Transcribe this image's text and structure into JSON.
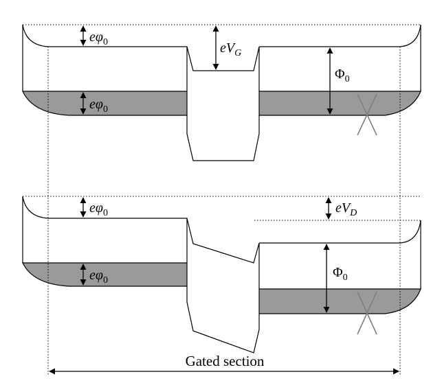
{
  "colors": {
    "line": "#000000",
    "fill": "#9a9a9a",
    "guide": "#000000",
    "cross": "#808080"
  },
  "top_panel": {
    "label_ephi_upper": "eφ",
    "label_ephi_upper_sub": "0",
    "label_ephi_lower": "eφ",
    "label_ephi_lower_sub": "0",
    "label_gate": "eV",
    "label_gate_sub": "G",
    "label_work": "Φ",
    "label_work_sub": "0"
  },
  "bottom_panel": {
    "label_ephi_upper": "eφ",
    "label_ephi_upper_sub": "0",
    "label_ephi_lower": "eφ",
    "label_ephi_lower_sub": "0",
    "label_drain": "eV",
    "label_drain_sub": "D",
    "label_work": "Φ",
    "label_work_sub": "0"
  },
  "section_label": "Gated section"
}
